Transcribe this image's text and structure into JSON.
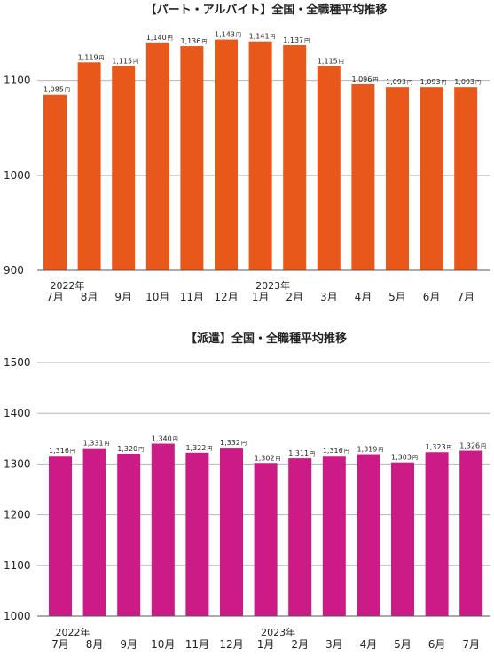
{
  "chart_data": [
    {
      "type": "bar",
      "title": "【パート・アルバイト】全国・全職種平均推移",
      "categories": [
        "7月",
        "8月",
        "9月",
        "10月",
        "11月",
        "12月",
        "1月",
        "2月",
        "3月",
        "4月",
        "5月",
        "6月",
        "7月"
      ],
      "year_markers": [
        {
          "index": 0,
          "label": "2022年"
        },
        {
          "index": 6,
          "label": "2023年"
        }
      ],
      "values": [
        1085,
        1119,
        1115,
        1140,
        1136,
        1143,
        1141,
        1137,
        1115,
        1096,
        1093,
        1093,
        1093
      ],
      "data_labels": [
        "1,085",
        "1,119",
        "1,115",
        "1,140",
        "1,136",
        "1,143",
        "1,141",
        "1,137",
        "1,115",
        "1,096",
        "1,093",
        "1,093",
        "1,093"
      ],
      "unit_suffix": "円",
      "yticks": [
        900,
        1000,
        1100
      ],
      "ylim": [
        900,
        1150
      ],
      "grid": true,
      "color": "#e8581a",
      "xlabel": "",
      "ylabel": ""
    },
    {
      "type": "bar",
      "title": "【派遣】全国・全職種平均推移",
      "categories": [
        "7月",
        "8月",
        "9月",
        "10月",
        "11月",
        "12月",
        "1月",
        "2月",
        "3月",
        "4月",
        "5月",
        "6月",
        "7月"
      ],
      "year_markers": [
        {
          "index": 0,
          "label": "2022年"
        },
        {
          "index": 6,
          "label": "2023年"
        }
      ],
      "values": [
        1316,
        1331,
        1320,
        1340,
        1322,
        1332,
        1302,
        1311,
        1316,
        1319,
        1303,
        1323,
        1326
      ],
      "data_labels": [
        "1,316",
        "1,331",
        "1,320",
        "1,340",
        "1,322",
        "1,332",
        "1,302",
        "1,311",
        "1,316",
        "1,319",
        "1,303",
        "1,323",
        "1,326"
      ],
      "unit_suffix": "円",
      "yticks": [
        1000,
        1100,
        1200,
        1300,
        1400,
        1500
      ],
      "ylim": [
        1000,
        1500
      ],
      "grid": true,
      "color": "#cc1a87",
      "xlabel": "",
      "ylabel": ""
    }
  ]
}
